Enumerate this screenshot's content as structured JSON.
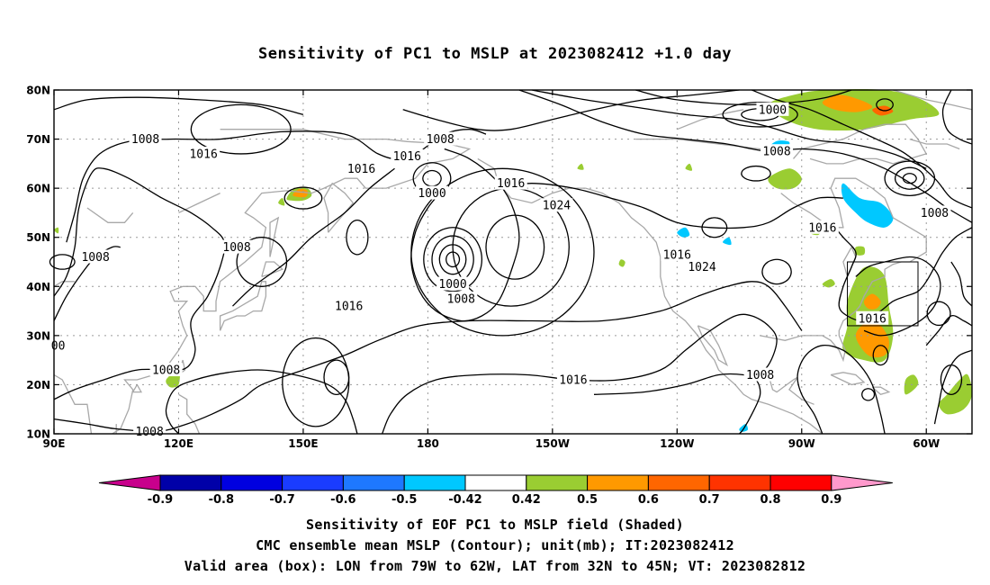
{
  "title": "Sensitivity of PC1 to MSLP at 2023082412 +1.0 day",
  "lon_ticks": [
    {
      "lon": 90,
      "label": "90E"
    },
    {
      "lon": 120,
      "label": "120E"
    },
    {
      "lon": 150,
      "label": "150E"
    },
    {
      "lon": 180,
      "label": "180"
    },
    {
      "lon": 210,
      "label": "150W"
    },
    {
      "lon": 240,
      "label": "120W"
    },
    {
      "lon": 270,
      "label": "90W"
    },
    {
      "lon": 300,
      "label": "60W"
    }
  ],
  "lat_ticks": [
    {
      "lat": 80,
      "label": "80N"
    },
    {
      "lat": 70,
      "label": "70N"
    },
    {
      "lat": 60,
      "label": "60N"
    },
    {
      "lat": 50,
      "label": "50N"
    },
    {
      "lat": 40,
      "label": "40N"
    },
    {
      "lat": 30,
      "label": "30N"
    },
    {
      "lat": 20,
      "label": "20N"
    },
    {
      "lat": 10,
      "label": "10N"
    }
  ],
  "domain": {
    "lon_min": 90,
    "lon_max": 311,
    "lat_min": 10,
    "lat_max": 80
  },
  "valid_box": {
    "lon_min": 281,
    "lon_max": 298,
    "lat_min": 32,
    "lat_max": 45
  },
  "contour_labels": [
    {
      "text": "1008",
      "lon": 112,
      "lat": 70
    },
    {
      "text": "1016",
      "lon": 126,
      "lat": 67
    },
    {
      "text": "1016",
      "lon": 164,
      "lat": 64
    },
    {
      "text": "1016",
      "lon": 175,
      "lat": 66.5
    },
    {
      "text": "1008",
      "lon": 183,
      "lat": 70
    },
    {
      "text": "1000",
      "lon": 181,
      "lat": 59
    },
    {
      "text": "1016",
      "lon": 200,
      "lat": 61
    },
    {
      "text": "1024",
      "lon": 211,
      "lat": 56.5
    },
    {
      "text": "1000",
      "lon": 263,
      "lat": 76
    },
    {
      "text": "1008",
      "lon": 264,
      "lat": 67.5
    },
    {
      "text": "1016",
      "lon": 275,
      "lat": 52
    },
    {
      "text": "1008",
      "lon": 302,
      "lat": 55
    },
    {
      "text": "1008",
      "lon": 134,
      "lat": 48
    },
    {
      "text": "1008",
      "lon": 100,
      "lat": 46
    },
    {
      "text": "1016",
      "lon": 240,
      "lat": 46.5
    },
    {
      "text": "1024",
      "lon": 246,
      "lat": 44
    },
    {
      "text": "1000",
      "lon": 186,
      "lat": 40.5
    },
    {
      "text": "1008",
      "lon": 188,
      "lat": 37.5
    },
    {
      "text": "1016",
      "lon": 161,
      "lat": 36
    },
    {
      "text": "1016",
      "lon": 287,
      "lat": 33.5
    },
    {
      "text": "1016",
      "lon": 215,
      "lat": 21
    },
    {
      "text": "1008",
      "lon": 117,
      "lat": 23
    },
    {
      "text": "1008",
      "lon": 260,
      "lat": 22
    },
    {
      "text": "00",
      "lon": 91,
      "lat": 28
    },
    {
      "text": "1008",
      "lon": 113,
      "lat": 10.5
    }
  ],
  "colorbar": {
    "levels": [
      "-0.9",
      "-0.8",
      "-0.7",
      "-0.6",
      "-0.5",
      "-0.42",
      "0.42",
      "0.5",
      "0.6",
      "0.7",
      "0.8",
      "0.9"
    ],
    "colors": [
      "#0000a8",
      "#0000e0",
      "#1a3cff",
      "#1e78ff",
      "#00c8ff",
      "#ffffff",
      "#9acd32",
      "#ff9900",
      "#ff6600",
      "#ff3300",
      "#ff0000"
    ],
    "low_end_color": "#c8008c",
    "high_end_color": "#ff99cc"
  },
  "caption": {
    "line1": "Sensitivity of EOF PC1 to MSLP field (Shaded)",
    "line2": "CMC ensemble mean MSLP (Contour); unit(mb); IT:2023082412",
    "line3": "Valid area (box): LON from 79W to 62W, LAT from 32N to 45N; VT: 2023082812"
  }
}
